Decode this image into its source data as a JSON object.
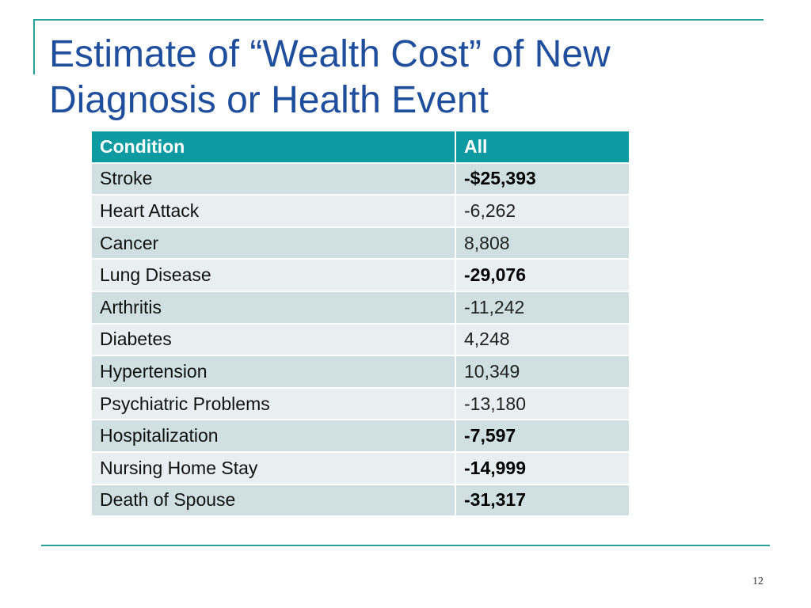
{
  "slide": {
    "title_line1": "Estimate of “Wealth Cost” of New",
    "title_line2": "Diagnosis or Health Event",
    "page_number": "12"
  },
  "table": {
    "headers": [
      "Condition",
      "All"
    ],
    "rows": [
      {
        "condition": "Stroke",
        "value": "-$25,393",
        "bold": true
      },
      {
        "condition": "Heart Attack",
        "value": "-6,262",
        "bold": false
      },
      {
        "condition": "Cancer",
        "value": "8,808",
        "bold": false
      },
      {
        "condition": "Lung Disease",
        "value": "-29,076",
        "bold": true
      },
      {
        "condition": "Arthritis",
        "value": "-11,242",
        "bold": false
      },
      {
        "condition": "Diabetes",
        "value": "4,248",
        "bold": false
      },
      {
        "condition": "Hypertension",
        "value": "10,349",
        "bold": false
      },
      {
        "condition": "Psychiatric Problems",
        "value": "-13,180",
        "bold": false
      },
      {
        "condition": "Hospitalization",
        "value": "-7,597",
        "bold": true
      },
      {
        "condition": "Nursing Home Stay",
        "value": "-14,999",
        "bold": true
      },
      {
        "condition": "Death of Spouse",
        "value": "-31,317",
        "bold": true
      }
    ]
  },
  "colors": {
    "title": "#1f4e9c",
    "header_bg": "#0d9aa0",
    "row_odd": "#d0e0e2",
    "row_even": "#e9eff0",
    "rule": "#2aa198"
  }
}
